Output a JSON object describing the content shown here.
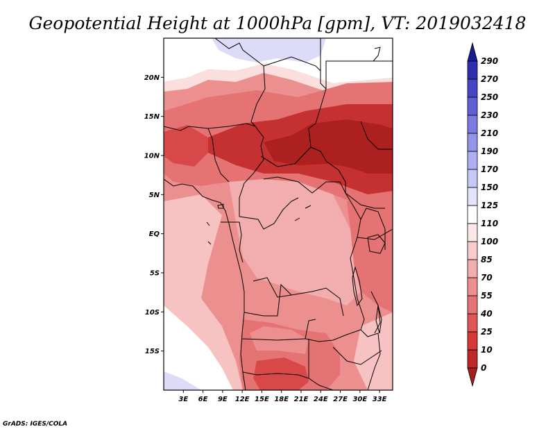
{
  "title": "Geopotential Height at 1000hPa [gpm], VT: 2019032418",
  "credit": "GrADS: IGES/COLA",
  "map": {
    "lon_range": [
      0,
      35
    ],
    "lat_range": [
      -20,
      25
    ],
    "lat_ticks": [
      {
        "value": 20,
        "label": "20N"
      },
      {
        "value": 15,
        "label": "15N"
      },
      {
        "value": 10,
        "label": "10N"
      },
      {
        "value": 5,
        "label": "5N"
      },
      {
        "value": 0,
        "label": "EQ"
      },
      {
        "value": -5,
        "label": "5S"
      },
      {
        "value": -10,
        "label": "10S"
      },
      {
        "value": -15,
        "label": "15S"
      }
    ],
    "lon_ticks": [
      {
        "value": 3,
        "label": "3E"
      },
      {
        "value": 6,
        "label": "6E"
      },
      {
        "value": 9,
        "label": "9E"
      },
      {
        "value": 12,
        "label": "12E"
      },
      {
        "value": 15,
        "label": "15E"
      },
      {
        "value": 18,
        "label": "18E"
      },
      {
        "value": 21,
        "label": "21E"
      },
      {
        "value": 24,
        "label": "24E"
      },
      {
        "value": 27,
        "label": "27E"
      },
      {
        "value": 30,
        "label": "30E"
      },
      {
        "value": 33,
        "label": "33E"
      }
    ]
  },
  "colorbar": {
    "levels": [
      "0",
      "10",
      "25",
      "40",
      "55",
      "70",
      "85",
      "100",
      "110",
      "125",
      "150",
      "170",
      "190",
      "210",
      "230",
      "250",
      "270",
      "290"
    ],
    "colors": [
      "#a81e1e",
      "#c02828",
      "#d73838",
      "#e05656",
      "#e67373",
      "#ec8f8f",
      "#f2aeae",
      "#f8cccc",
      "#fde8e8",
      "#ffffff",
      "#e3e3fb",
      "#c8c8f6",
      "#aeaef1",
      "#9494ea",
      "#7a7ae0",
      "#6060d4",
      "#4646c4",
      "#2e2eae",
      "#1a1a96"
    ]
  },
  "field_colors": {
    "blue_light": "#dcdcf8",
    "white": "#ffffff",
    "pink_lightest": "#fbdede",
    "pink_light": "#f6c2c2",
    "pink": "#f2aeae",
    "rose": "#ec8f8f",
    "red_light": "#e67373",
    "red": "#d84848",
    "red_dark": "#c53030",
    "red_darkest": "#ad2020"
  }
}
